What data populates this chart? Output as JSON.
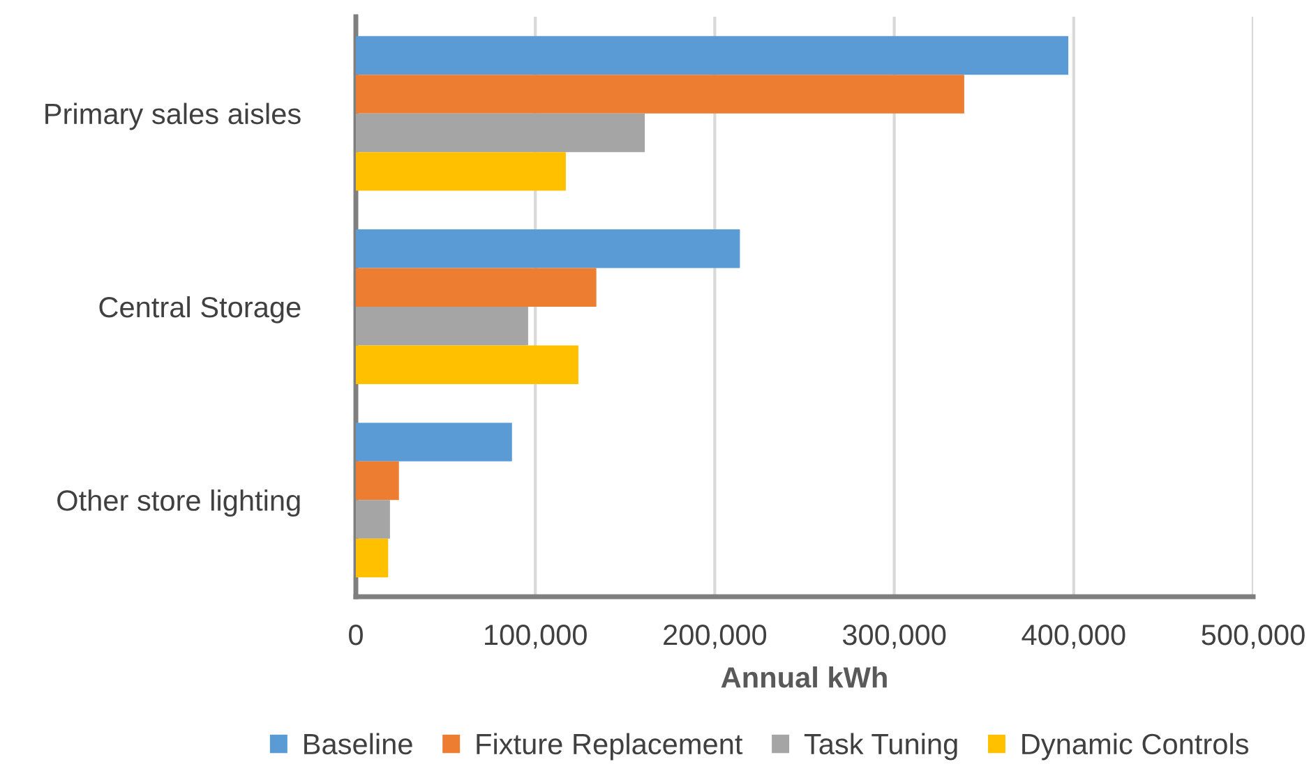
{
  "chart_data": {
    "type": "bar",
    "orientation": "horizontal",
    "xlabel": "Annual kWh",
    "categories": [
      "Primary sales aisles",
      "Central Storage",
      "Other store lighting"
    ],
    "series": [
      {
        "name": "Baseline",
        "color": "#5b9bd5",
        "values": [
          397000,
          214000,
          87000
        ]
      },
      {
        "name": "Fixture Replacement",
        "color": "#ed7d31",
        "values": [
          339000,
          134000,
          24000
        ]
      },
      {
        "name": "Task Tuning",
        "color": "#a5a5a5",
        "values": [
          161000,
          96000,
          19000
        ]
      },
      {
        "name": "Dynamic Controls",
        "color": "#ffc000",
        "values": [
          117000,
          124000,
          18000
        ]
      }
    ],
    "xlim": [
      0,
      500000
    ],
    "xticks": [
      0,
      {
        "value": 100000,
        "label": "100,000"
      },
      {
        "value": 200000,
        "label": "200,000"
      },
      {
        "value": 300000,
        "label": "300,000"
      },
      {
        "value": 400000,
        "label": "400,000"
      },
      {
        "value": 500000,
        "label": "500,000"
      }
    ],
    "grid": "x",
    "legend": "bottom"
  }
}
